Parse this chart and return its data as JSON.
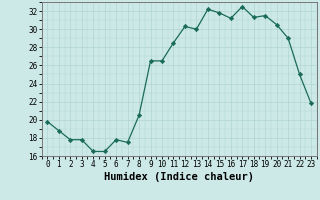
{
  "x": [
    0,
    1,
    2,
    3,
    4,
    5,
    6,
    7,
    8,
    9,
    10,
    11,
    12,
    13,
    14,
    15,
    16,
    17,
    18,
    19,
    20,
    21,
    22,
    23
  ],
  "y": [
    19.8,
    18.8,
    17.8,
    17.8,
    16.5,
    16.5,
    17.8,
    17.5,
    20.5,
    26.5,
    26.5,
    28.5,
    30.3,
    30.0,
    32.2,
    31.8,
    31.2,
    32.5,
    31.3,
    31.5,
    30.5,
    29.0,
    25.0,
    21.8
  ],
  "line_color": "#1a6b5a",
  "marker": "D",
  "marker_size": 2.2,
  "bg_color": "#cce9e8",
  "grid_color": "#b0d4d2",
  "xlabel": "Humidex (Indice chaleur)",
  "xlim": [
    -0.5,
    23.5
  ],
  "ylim": [
    16,
    33
  ],
  "yticks": [
    16,
    18,
    20,
    22,
    24,
    26,
    28,
    30,
    32
  ],
  "xticks": [
    0,
    1,
    2,
    3,
    4,
    5,
    6,
    7,
    8,
    9,
    10,
    11,
    12,
    13,
    14,
    15,
    16,
    17,
    18,
    19,
    20,
    21,
    22,
    23
  ],
  "tick_labelsize": 5.5,
  "xlabel_fontsize": 7.5
}
